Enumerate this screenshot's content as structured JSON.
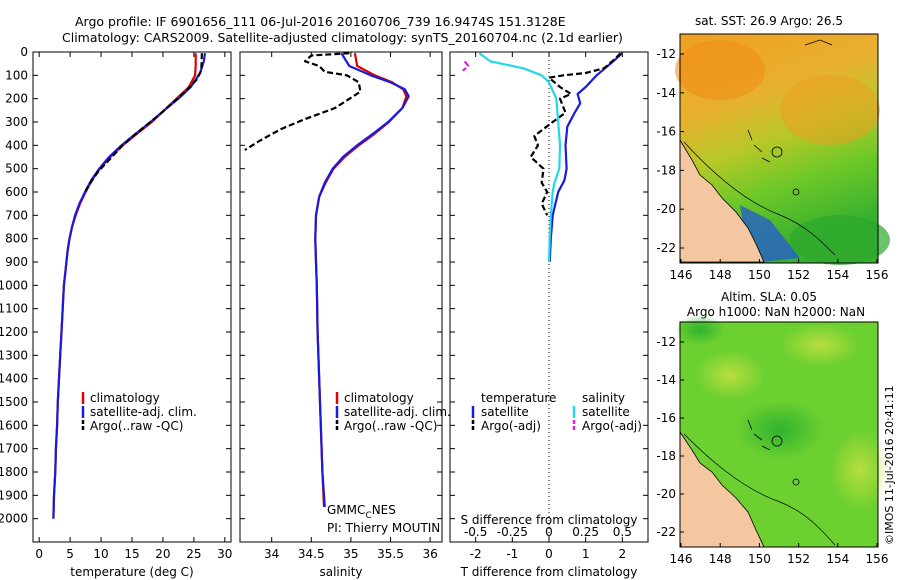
{
  "header": {
    "line1": "Argo profile: IF 6901656_111 06-Jul-2016 20160706_739 16.9474S 151.3128E",
    "line2": "Climatology: CARS2009. Satellite-adjusted climatology: synTS_20160704.nc (2.1d earlier)"
  },
  "watermark": "©IMOS 11-Jul-2016 20:41:11",
  "colors": {
    "clim": "#e00000",
    "sat": "#1a1adc",
    "argo": "#000000",
    "sat_s": "#20d8e8",
    "argo_s": "#e020e0"
  },
  "chart_data": [
    {
      "type": "line",
      "id": "temperature",
      "xlabel": "temperature (deg C)",
      "ylabel": "",
      "xlim": [
        -1,
        31
      ],
      "ylim": [
        0,
        2100
      ],
      "yreverse": true,
      "xticks": [
        0,
        5,
        10,
        15,
        20,
        25,
        30
      ],
      "yticks": [
        0,
        100,
        200,
        300,
        400,
        500,
        600,
        700,
        800,
        900,
        1000,
        1100,
        1200,
        1300,
        1400,
        1500,
        1600,
        1700,
        1800,
        1900,
        2000
      ],
      "legend": [
        "climatology",
        "satellite-adj. clim.",
        "Argo(..raw -QC)"
      ],
      "series": [
        {
          "name": "climatology",
          "color_key": "clim",
          "points": [
            [
              25.3,
              5
            ],
            [
              25.3,
              60
            ],
            [
              25.2,
              100
            ],
            [
              24.2,
              150
            ],
            [
              22.2,
              200
            ],
            [
              20.2,
              250
            ],
            [
              18.2,
              300
            ],
            [
              15.8,
              350
            ],
            [
              13.5,
              400
            ],
            [
              11.5,
              450
            ],
            [
              9.8,
              500
            ],
            [
              8.5,
              550
            ],
            [
              7.5,
              600
            ],
            [
              6.6,
              650
            ],
            [
              5.9,
              700
            ],
            [
              5.3,
              750
            ],
            [
              4.9,
              800
            ],
            [
              4.6,
              850
            ],
            [
              4.4,
              900
            ],
            [
              4.2,
              950
            ],
            [
              4.0,
              1000
            ],
            [
              3.8,
              1100
            ],
            [
              3.6,
              1200
            ],
            [
              3.4,
              1300
            ],
            [
              3.2,
              1400
            ],
            [
              3.0,
              1500
            ],
            [
              2.9,
              1600
            ],
            [
              2.7,
              1700
            ],
            [
              2.6,
              1800
            ],
            [
              2.4,
              1900
            ],
            [
              2.3,
              2000
            ]
          ]
        },
        {
          "name": "satellite-adj. clim.",
          "color_key": "sat",
          "points": [
            [
              26.8,
              5
            ],
            [
              26.6,
              40
            ],
            [
              26.0,
              90
            ],
            [
              24.5,
              150
            ],
            [
              22.5,
              200
            ],
            [
              20.2,
              250
            ],
            [
              18.0,
              300
            ],
            [
              15.6,
              350
            ],
            [
              13.3,
              400
            ],
            [
              11.3,
              450
            ],
            [
              9.7,
              500
            ],
            [
              8.4,
              550
            ],
            [
              7.4,
              600
            ],
            [
              6.5,
              650
            ],
            [
              5.8,
              700
            ],
            [
              5.3,
              750
            ],
            [
              4.9,
              800
            ],
            [
              4.6,
              850
            ],
            [
              4.4,
              900
            ],
            [
              4.2,
              950
            ],
            [
              4.0,
              1000
            ],
            [
              3.8,
              1100
            ],
            [
              3.6,
              1200
            ],
            [
              3.4,
              1300
            ],
            [
              3.2,
              1400
            ],
            [
              3.0,
              1500
            ],
            [
              2.9,
              1600
            ],
            [
              2.7,
              1700
            ],
            [
              2.6,
              1800
            ],
            [
              2.4,
              1900
            ],
            [
              2.3,
              2000
            ]
          ]
        },
        {
          "name": "Argo(..raw -QC)",
          "color_key": "argo",
          "dash": true,
          "points": [
            [
              26.3,
              5
            ],
            [
              26.2,
              80
            ],
            [
              25.4,
              120
            ],
            [
              23.6,
              170
            ],
            [
              21.5,
              220
            ],
            [
              19.8,
              260
            ],
            [
              17.5,
              310
            ],
            [
              15.2,
              360
            ],
            [
              13.5,
              400
            ],
            [
              11.4,
              460
            ],
            [
              9.6,
              510
            ],
            [
              8.3,
              560
            ],
            [
              7.4,
              600
            ]
          ]
        }
      ]
    },
    {
      "type": "line",
      "id": "salinity",
      "xlabel": "salinity",
      "xlim": [
        33.6,
        36.15
      ],
      "ylim": [
        0,
        2100
      ],
      "yreverse": true,
      "xticks": [
        34,
        34.5,
        35,
        35.5,
        36
      ],
      "legend": [
        "climatology",
        "satellite-adj. clim.",
        "Argo(..raw -QC)"
      ],
      "annotations": [
        "GMMC",
        "C",
        "NES",
        "PI: Thierry MOUTIN"
      ],
      "series": [
        {
          "name": "climatology",
          "color_key": "clim",
          "points": [
            [
              35.05,
              5
            ],
            [
              35.08,
              60
            ],
            [
              35.3,
              100
            ],
            [
              35.52,
              130
            ],
            [
              35.66,
              160
            ],
            [
              35.7,
              190
            ],
            [
              35.65,
              240
            ],
            [
              35.48,
              300
            ],
            [
              35.3,
              350
            ],
            [
              35.1,
              400
            ],
            [
              34.92,
              450
            ],
            [
              34.78,
              500
            ],
            [
              34.68,
              560
            ],
            [
              34.6,
              620
            ],
            [
              34.56,
              700
            ],
            [
              34.55,
              800
            ],
            [
              34.56,
              900
            ],
            [
              34.57,
              1000
            ],
            [
              34.58,
              1200
            ],
            [
              34.6,
              1400
            ],
            [
              34.62,
              1600
            ],
            [
              34.64,
              1800
            ],
            [
              34.66,
              1950
            ]
          ]
        },
        {
          "name": "satellite-adj. clim.",
          "color_key": "sat",
          "points": [
            [
              34.88,
              5
            ],
            [
              34.98,
              60
            ],
            [
              35.25,
              100
            ],
            [
              35.5,
              130
            ],
            [
              35.68,
              160
            ],
            [
              35.73,
              190
            ],
            [
              35.65,
              240
            ],
            [
              35.47,
              300
            ],
            [
              35.28,
              350
            ],
            [
              35.08,
              400
            ],
            [
              34.9,
              450
            ],
            [
              34.77,
              500
            ],
            [
              34.67,
              560
            ],
            [
              34.6,
              620
            ],
            [
              34.56,
              700
            ],
            [
              34.55,
              800
            ],
            [
              34.56,
              900
            ],
            [
              34.57,
              1000
            ],
            [
              34.58,
              1200
            ],
            [
              34.6,
              1400
            ],
            [
              34.62,
              1600
            ],
            [
              34.64,
              1800
            ],
            [
              34.67,
              1950
            ]
          ]
        },
        {
          "name": "Argo(..raw -QC)",
          "color_key": "argo",
          "dash": true,
          "points": [
            [
              34.98,
              5
            ],
            [
              34.5,
              15
            ],
            [
              34.42,
              40
            ],
            [
              34.6,
              60
            ],
            [
              34.67,
              85
            ],
            [
              34.95,
              100
            ],
            [
              35.1,
              130
            ],
            [
              35.12,
              170
            ],
            [
              34.8,
              240
            ],
            [
              34.4,
              290
            ],
            [
              34.12,
              330
            ],
            [
              33.85,
              380
            ],
            [
              33.66,
              420
            ]
          ]
        }
      ]
    },
    {
      "type": "line",
      "id": "difference",
      "xlabel": "T difference from climatology",
      "xlabel_top": "S difference from climatology",
      "xlim": [
        -2.7,
        2.7
      ],
      "ylim": [
        0,
        2100
      ],
      "yreverse": true,
      "xticks": [
        -2,
        -1,
        0,
        1,
        2
      ],
      "xticklabels_top": [
        "-0.5",
        "-0.25",
        "0",
        "0.25",
        "0.5"
      ],
      "legend_left": [
        "temperature",
        "satellite",
        "Argo(-adj)"
      ],
      "legend_right": [
        "salinity",
        "satellite",
        "Argo(-adj)"
      ],
      "series": [
        {
          "name": "temperature satellite",
          "color_key": "sat",
          "points": [
            [
              2.0,
              5
            ],
            [
              1.75,
              40
            ],
            [
              1.3,
              100
            ],
            [
              1.0,
              150
            ],
            [
              0.78,
              180
            ],
            [
              0.85,
              220
            ],
            [
              0.7,
              260
            ],
            [
              0.5,
              320
            ],
            [
              0.45,
              400
            ],
            [
              0.48,
              500
            ],
            [
              0.42,
              550
            ],
            [
              0.25,
              600
            ],
            [
              0.1,
              700
            ],
            [
              0.05,
              800
            ],
            [
              0.02,
              900
            ]
          ]
        },
        {
          "name": "temperature Argo(-adj)",
          "color_key": "argo",
          "dash": true,
          "points": [
            [
              1.95,
              5
            ],
            [
              1.8,
              30
            ],
            [
              1.5,
              70
            ],
            [
              1.0,
              90
            ],
            [
              0.4,
              100
            ],
            [
              0.0,
              110
            ],
            [
              0.3,
              150
            ],
            [
              0.6,
              180
            ],
            [
              0.3,
              200
            ],
            [
              0.45,
              260
            ],
            [
              0.1,
              300
            ],
            [
              -0.4,
              360
            ],
            [
              -0.3,
              400
            ],
            [
              -0.5,
              450
            ],
            [
              -0.15,
              500
            ],
            [
              -0.2,
              560
            ],
            [
              -0.05,
              600
            ],
            [
              -0.2,
              650
            ],
            [
              -0.05,
              700
            ]
          ]
        },
        {
          "name": "salinity satellite",
          "color_key": "sat_s",
          "points": [
            [
              -1.9,
              5
            ],
            [
              -1.6,
              40
            ],
            [
              -0.7,
              70
            ],
            [
              -0.2,
              100
            ],
            [
              0.0,
              130
            ],
            [
              0.2,
              200
            ],
            [
              0.25,
              300
            ],
            [
              0.3,
              400
            ],
            [
              0.28,
              500
            ],
            [
              0.15,
              560
            ],
            [
              0.1,
              600
            ],
            [
              0.05,
              700
            ],
            [
              0.02,
              800
            ],
            [
              0.0,
              900
            ]
          ]
        },
        {
          "name": "salinity Argo(-adj)",
          "color_key": "argo_s",
          "dash": true,
          "points": [
            [
              -2.3,
              40
            ],
            [
              -2.2,
              60
            ],
            [
              -2.35,
              80
            ]
          ]
        }
      ]
    }
  ],
  "maps": {
    "sst": {
      "title": "sat. SST: 26.9 Argo: 26.5",
      "xticks": [
        "146",
        "148",
        "150",
        "152",
        "154",
        "156"
      ],
      "yticks": [
        "-12",
        "-14",
        "-16",
        "-18",
        "-20",
        "-22"
      ]
    },
    "sla": {
      "title1": "Altim. SLA: 0.05",
      "title2": "Argo h1000: NaN h2000: NaN",
      "xticks": [
        "146",
        "148",
        "150",
        "152",
        "154",
        "156"
      ],
      "yticks": [
        "-12",
        "-14",
        "-16",
        "-18",
        "-20",
        "-22"
      ]
    }
  }
}
